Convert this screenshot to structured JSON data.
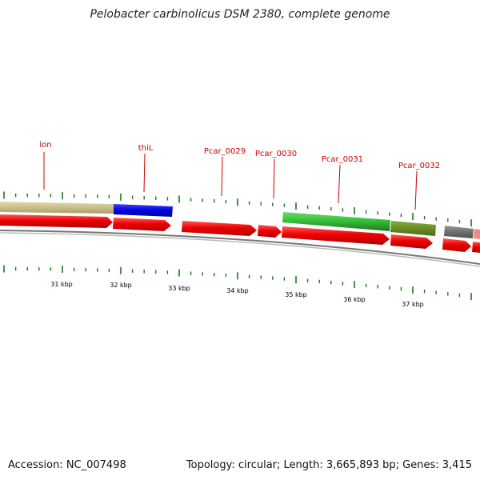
{
  "header": {
    "title": "Pelobacter carbinolicus DSM 2380, complete genome"
  },
  "footer": {
    "accession": "Accession: NC_007498",
    "stats": "Topology: circular; Length: 3,665,893 bp; Genes: 3,415"
  },
  "gene_labels": [
    "lon",
    "thiL",
    "Pcar_0029",
    "Pcar_0030",
    "Pcar_0031",
    "Pcar_0032"
  ],
  "scale_labels": [
    "31 kbp",
    "32 kbp",
    "33 kbp",
    "34 kbp",
    "35 kbp",
    "36 kbp",
    "37 kbp"
  ],
  "colors": {
    "label": "#cc0000",
    "cds": "#ee0000",
    "tan": "#c8c088",
    "blue": "#0000dd",
    "green": "#33cc33",
    "olive": "#6b8e23",
    "gray": "#6e6e6e",
    "pink": "#f08080",
    "tick": "#1a7a1a",
    "backbone": "#8a8a8a"
  }
}
